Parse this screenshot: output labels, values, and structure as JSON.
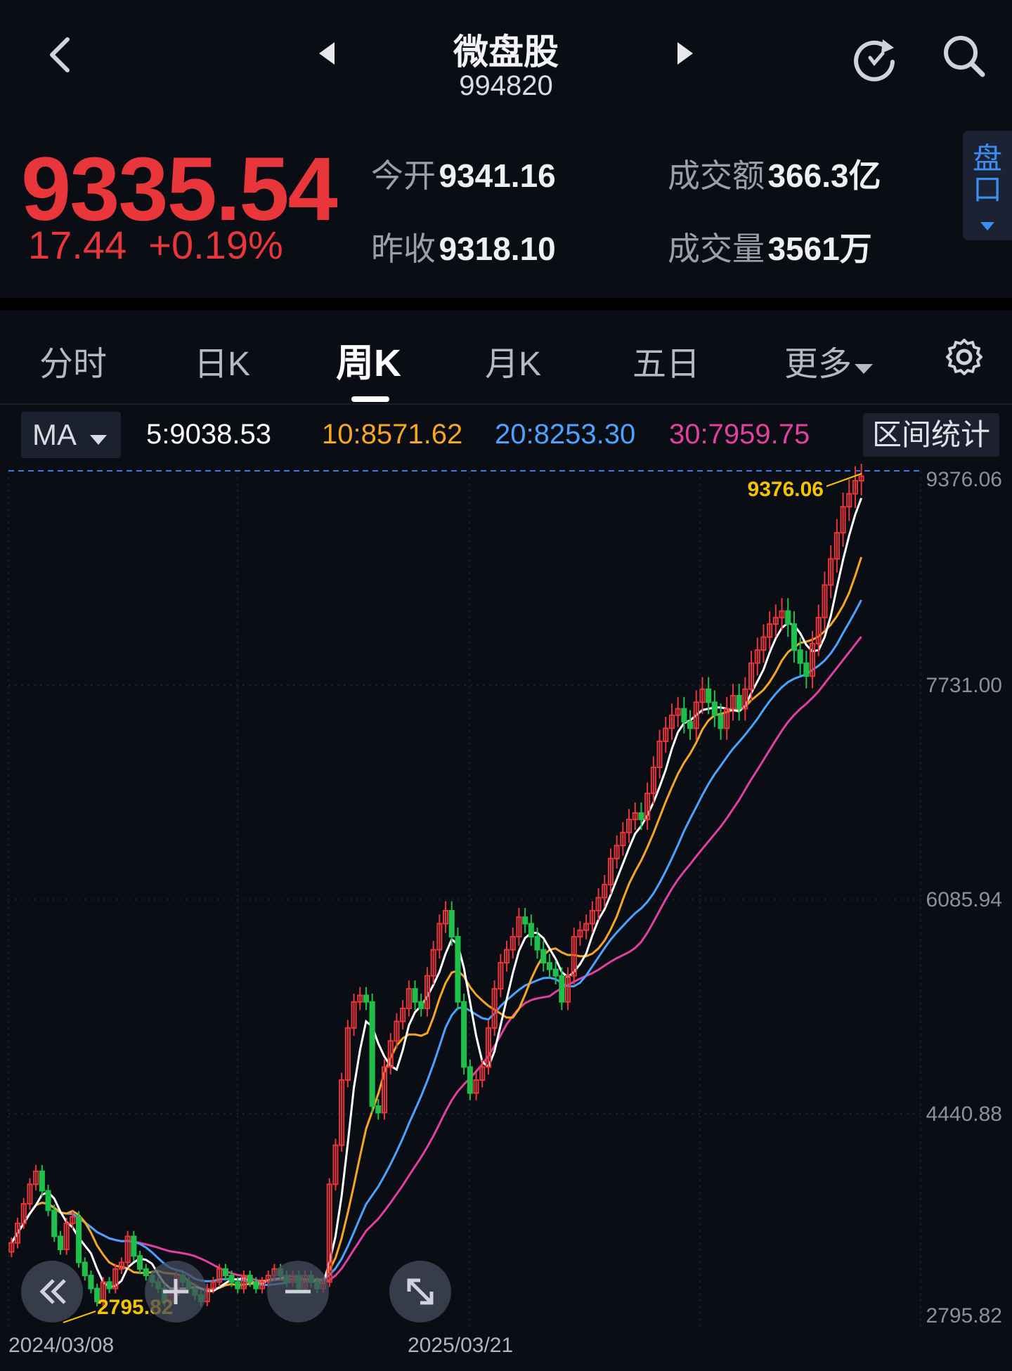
{
  "header": {
    "back_icon": "chevron-left-icon",
    "prev_icon": "triangle-left-icon",
    "next_icon": "triangle-right-icon",
    "title": "微盘股",
    "code": "994820",
    "refresh_icon": "refresh-icon",
    "search_icon": "search-icon"
  },
  "quote": {
    "price": "9335.54",
    "change": "17.44",
    "change_pct": "+0.19%",
    "open_label": "今开",
    "open_value": "9341.16",
    "prev_close_label": "昨收",
    "prev_close_value": "9318.10",
    "amount_label": "成交额",
    "amount_value": "366.3亿",
    "volume_label": "成交量",
    "volume_value": "3561万",
    "pankou_label": "盘口",
    "up_color": "#e8363a"
  },
  "tabs": [
    {
      "label": "分时"
    },
    {
      "label": "日K"
    },
    {
      "label": "周K",
      "active": true
    },
    {
      "label": "月K"
    },
    {
      "label": "五日"
    },
    {
      "label": "更多"
    }
  ],
  "ma_bar": {
    "select_label": "MA",
    "ma5": "5:9038.53",
    "ma10": "10:8571.62",
    "ma20": "20:8253.30",
    "ma30": "30:7959.75",
    "range_stat_label": "区间统计",
    "colors": {
      "ma5": "#ffffff",
      "ma10": "#f5a623",
      "ma20": "#4aa3ff",
      "ma30": "#e040a0"
    }
  },
  "chart_data": {
    "type": "candlestick",
    "y_ticks": [
      "9376.06",
      "7731.00",
      "6085.94",
      "4440.88",
      "2795.82"
    ],
    "ylim": [
      2795.82,
      9376.06
    ],
    "x_labels": [
      "2024/03/08",
      "2025/03/21"
    ],
    "max_label": "9376.06",
    "min_label": "2795.82",
    "series": {
      "close": [
        3450,
        3600,
        3750,
        3900,
        4000,
        3850,
        3700,
        3500,
        3400,
        3600,
        3650,
        3300,
        3200,
        3100,
        3000,
        3150,
        3100,
        3250,
        3300,
        3500,
        3350,
        3250,
        3200,
        3150,
        3100,
        3000,
        3050,
        3200,
        3150,
        3100,
        3050,
        3000,
        3100,
        3150,
        3250,
        3200,
        3150,
        3100,
        3200,
        3150,
        3100,
        3150,
        3200,
        3250,
        3200,
        3150,
        3200,
        3100,
        3200,
        3150,
        3100,
        3150,
        3900,
        4200,
        4700,
        5100,
        5300,
        5350,
        5300,
        4500,
        4450,
        4800,
        5000,
        5150,
        5250,
        5400,
        5300,
        5250,
        5500,
        5700,
        5900,
        6000,
        5800,
        5300,
        4800,
        4600,
        4700,
        4800,
        5100,
        5400,
        5600,
        5700,
        5800,
        5950,
        5900,
        5800,
        5700,
        5600,
        5550,
        5500,
        5300,
        5500,
        5800,
        5850,
        5900,
        6000,
        6100,
        6200,
        6400,
        6500,
        6600,
        6700,
        6750,
        6700,
        6900,
        7100,
        7300,
        7400,
        7500,
        7550,
        7450,
        7400,
        7600,
        7700,
        7600,
        7500,
        7400,
        7550,
        7650,
        7550,
        7700,
        7900,
        8000,
        8100,
        8200,
        8250,
        8300,
        8200,
        8000,
        7900,
        7800,
        8050,
        8250,
        8500,
        8700,
        8900,
        9100,
        9200,
        9300,
        9335
      ]
    }
  }
}
